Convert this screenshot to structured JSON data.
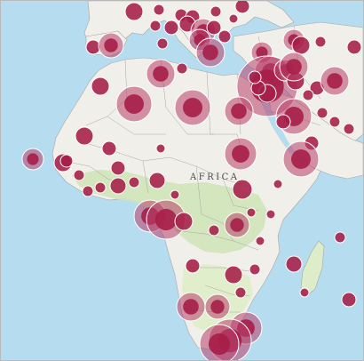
{
  "map": {
    "region_label": "AFRICA",
    "colors": {
      "ocean": "#b5dcef",
      "ocean_deep": "#a6d3ea",
      "land": "#f1efe9",
      "desert": "#f3efe4",
      "vegetation": "#cfe4b8",
      "vegetation_light": "#deedc9",
      "border": "#a9a7a3",
      "marker_fill": "#a61e48",
      "marker_halo": "#b8406a",
      "marker_stroke": "#ffffff"
    },
    "markers": [
      {
        "r": 10,
        "size": "medium"
      },
      {
        "r": 14,
        "size": "large"
      }
    ]
  }
}
